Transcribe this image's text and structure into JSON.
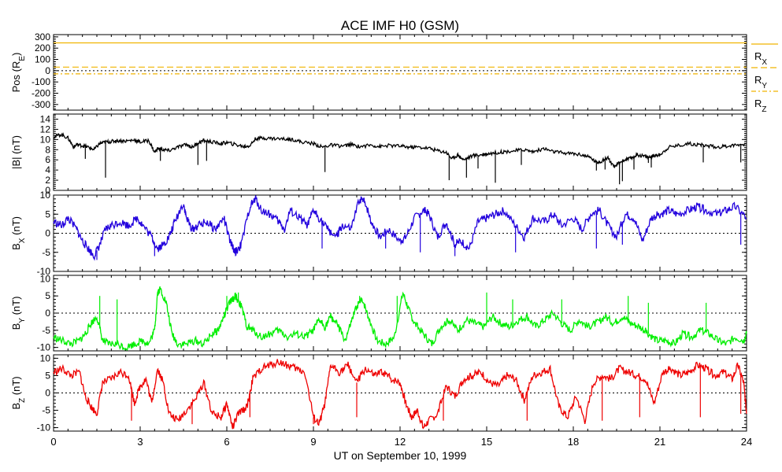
{
  "title": "ACE IMF H0 (GSM)",
  "xlabel": "UT on September 10, 1999",
  "colors": {
    "background": "#ffffff",
    "axes": "#000000",
    "mag": "#000000",
    "bx": "#2200dd",
    "by": "#00ee00",
    "bz": "#ee0000",
    "rx": "#f0b400",
    "ry": "#f0b400",
    "rz": "#f0b400"
  },
  "chart_data": [
    {
      "type": "line",
      "id": "pos",
      "ylabel": "Pos (R_E)",
      "ylabel_parts": [
        "Pos (R",
        "E",
        ")"
      ],
      "ylim": [
        -350,
        320
      ],
      "yticks": [
        300,
        200,
        100,
        0,
        -100,
        -200,
        -300
      ],
      "xlim": [
        0,
        24
      ],
      "zero_line": true,
      "legend": [
        "RX",
        "RY",
        "RZ"
      ],
      "legend_parts": [
        [
          "R",
          "X"
        ],
        [
          "R",
          "Y"
        ],
        [
          "R",
          "Z"
        ]
      ],
      "series": [
        {
          "name": "RX",
          "x": [
            0,
            24
          ],
          "y": [
            247,
            247
          ],
          "dash": ""
        },
        {
          "name": "RY",
          "x": [
            0,
            24
          ],
          "y": [
            32,
            32
          ],
          "dash": "8,4"
        },
        {
          "name": "RZ",
          "x": [
            0,
            24
          ],
          "y": [
            -28,
            -28
          ],
          "dash": "6,3,2,3"
        }
      ]
    },
    {
      "type": "line",
      "id": "mag",
      "ylabel": "|B| (nT)",
      "ylim": [
        0,
        15
      ],
      "yticks": [
        14,
        12,
        10,
        8,
        6,
        4,
        2,
        0
      ],
      "xlim": [
        0,
        24
      ],
      "series": [
        {
          "name": "|B|",
          "x": [
            0,
            0.25,
            0.5,
            0.7,
            0.8,
            1.0,
            1.2,
            1.4,
            1.6,
            1.8,
            2.0,
            2.2,
            2.5,
            2.8,
            3.0,
            3.3,
            3.5,
            3.6,
            3.8,
            4.0,
            4.3,
            4.6,
            4.8,
            5.0,
            5.2,
            5.5,
            5.8,
            6.0,
            6.3,
            6.6,
            6.8,
            7.0,
            7.3,
            7.6,
            8.0,
            8.3,
            8.6,
            9.0,
            9.3,
            9.6,
            10.0,
            10.3,
            10.6,
            11.0,
            11.3,
            11.6,
            12.0,
            12.3,
            12.6,
            13.0,
            13.3,
            13.6,
            13.8,
            14.0,
            14.2,
            14.5,
            14.8,
            15.0,
            15.3,
            15.6,
            16.0,
            16.3,
            16.6,
            17.0,
            17.3,
            17.6,
            18.0,
            18.3,
            18.6,
            18.8,
            19.0,
            19.2,
            19.4,
            19.6,
            19.8,
            20.0,
            20.2,
            20.4,
            20.6,
            20.8,
            21.0,
            21.3,
            21.6,
            22.0,
            22.3,
            22.6,
            23.0,
            23.3,
            23.6,
            24.0
          ],
          "y": [
            10.5,
            11,
            10.3,
            8.5,
            9.0,
            8.8,
            8.5,
            8.0,
            9.2,
            9.5,
            9.6,
            9.8,
            9.7,
            9.9,
            9.5,
            9.8,
            7.5,
            8.2,
            8.0,
            7.8,
            8.5,
            9.0,
            8.5,
            9.3,
            9.8,
            9.5,
            9.2,
            9.4,
            9.0,
            8.6,
            8.8,
            10.2,
            10.3,
            10.2,
            10.1,
            10.0,
            9.5,
            9.2,
            8.5,
            8.9,
            8.7,
            9.0,
            8.6,
            8.9,
            8.6,
            8.8,
            8.7,
            8.5,
            8.5,
            8.3,
            7.8,
            7.5,
            6.2,
            7.0,
            6.0,
            6.8,
            7.0,
            7.2,
            7.4,
            7.6,
            7.8,
            8.0,
            7.6,
            8.2,
            7.6,
            7.4,
            7.2,
            7.0,
            6.4,
            5.5,
            5.8,
            6.5,
            4.5,
            5.5,
            6.0,
            6.3,
            7.0,
            6.8,
            6.5,
            6.8,
            7.0,
            8.5,
            8.8,
            9.2,
            9.0,
            8.8,
            8.5,
            8.7,
            8.9,
            9.2
          ]
        },
        {
          "name": "|B| spikes",
          "x": [
            1.1,
            1.8,
            3.7,
            5.0,
            5.3,
            9.4,
            13.7,
            14.3,
            14.7,
            15.3,
            16.2,
            18.8,
            19.1,
            19.6,
            19.7,
            20.1,
            20.6,
            20.7,
            22.5,
            23.8
          ],
          "y": [
            6.2,
            2.5,
            5.8,
            5.0,
            5.8,
            3.6,
            2.0,
            2.5,
            4.3,
            1.5,
            5.0,
            3.9,
            4.1,
            1.2,
            1.8,
            4.1,
            5.4,
            4.5,
            5.5,
            5.5
          ]
        }
      ]
    },
    {
      "type": "line",
      "id": "bx",
      "ylabel": "BX (nT)",
      "ylabel_parts": [
        "B",
        "X",
        " (nT)"
      ],
      "ylim": [
        -10,
        10
      ],
      "yticks": [
        10,
        5,
        0,
        -5,
        -10
      ],
      "xlim": [
        0,
        24
      ],
      "zero_line": true,
      "series": [
        {
          "name": "BX",
          "x": [
            0,
            0.3,
            0.5,
            0.8,
            1.0,
            1.2,
            1.4,
            1.6,
            1.8,
            2.0,
            2.3,
            2.6,
            2.9,
            3.1,
            3.4,
            3.6,
            3.8,
            4.0,
            4.2,
            4.5,
            4.6,
            4.8,
            5.0,
            5.3,
            5.6,
            5.9,
            6.1,
            6.3,
            6.5,
            6.8,
            7.0,
            7.2,
            7.5,
            7.8,
            8.0,
            8.2,
            8.5,
            8.8,
            9.0,
            9.2,
            9.5,
            9.8,
            10.0,
            10.3,
            10.6,
            10.8,
            11.0,
            11.3,
            11.6,
            12.0,
            12.2,
            12.5,
            12.8,
            13.0,
            13.3,
            13.6,
            13.9,
            14.1,
            14.4,
            14.7,
            15.0,
            15.3,
            15.6,
            16.0,
            16.3,
            16.6,
            17.0,
            17.3,
            17.6,
            18.0,
            18.3,
            18.6,
            18.9,
            19.2,
            19.5,
            19.8,
            20.1,
            20.4,
            20.7,
            21.0,
            21.3,
            21.6,
            22.0,
            22.3,
            22.6,
            23.0,
            23.3,
            23.6,
            24.0
          ],
          "y": [
            3,
            2,
            4,
            1,
            -2,
            -4,
            -6,
            -3,
            1,
            2,
            3,
            2,
            4,
            2,
            -1,
            -4,
            -3,
            -1,
            3,
            8,
            4,
            1,
            2,
            3,
            1,
            4,
            -2,
            -5,
            -3,
            7,
            9,
            6,
            5,
            3,
            1,
            6,
            4,
            2,
            6,
            4,
            1,
            -1,
            2,
            1,
            9,
            8,
            3,
            -1,
            1,
            -2,
            -1,
            4,
            6,
            5,
            -1,
            3,
            -3,
            -2,
            -4,
            3,
            4,
            5,
            6,
            2,
            -1,
            4,
            3,
            5,
            2,
            4,
            1,
            5,
            6,
            2,
            -1,
            5,
            4,
            -2,
            4,
            5,
            6,
            5,
            6,
            7,
            6,
            5,
            6,
            7,
            4
          ]
        },
        {
          "name": "BX spikes",
          "x": [
            1.5,
            3.5,
            6.3,
            9.3,
            11.5,
            12.7,
            13.9,
            14.3,
            16.0,
            18.8,
            19.7,
            23.8
          ],
          "y": [
            -7,
            -6,
            -6,
            -4,
            -4,
            -5,
            -6,
            -4,
            -5,
            -4,
            -3,
            -3
          ]
        }
      ]
    },
    {
      "type": "line",
      "id": "by",
      "ylabel": "BY (nT)",
      "ylabel_parts": [
        "B",
        "Y",
        " (nT)"
      ],
      "ylim": [
        -11,
        11
      ],
      "yticks": [
        10,
        5,
        0,
        -5,
        -10
      ],
      "xlim": [
        0,
        24
      ],
      "zero_line": true,
      "series": [
        {
          "name": "BY",
          "x": [
            0,
            0.3,
            0.6,
            0.9,
            1.1,
            1.3,
            1.5,
            1.7,
            1.9,
            2.2,
            2.5,
            2.8,
            3.1,
            3.3,
            3.5,
            3.6,
            3.7,
            3.9,
            4.1,
            4.3,
            4.6,
            4.9,
            5.2,
            5.5,
            5.7,
            5.9,
            6.1,
            6.3,
            6.5,
            6.7,
            6.9,
            7.2,
            7.5,
            7.8,
            8.1,
            8.4,
            8.7,
            9.0,
            9.2,
            9.4,
            9.6,
            9.8,
            10.1,
            10.3,
            10.5,
            10.7,
            10.9,
            11.2,
            11.5,
            11.8,
            12.1,
            12.3,
            12.5,
            12.8,
            13.1,
            13.4,
            13.7,
            14.0,
            14.3,
            14.6,
            14.9,
            15.2,
            15.5,
            15.8,
            16.1,
            16.4,
            16.7,
            17.0,
            17.3,
            17.6,
            17.9,
            18.2,
            18.5,
            18.8,
            19.1,
            19.4,
            19.7,
            20.0,
            20.3,
            20.6,
            20.9,
            21.2,
            21.5,
            21.8,
            22.1,
            22.4,
            22.7,
            23.0,
            23.3,
            23.6,
            23.9,
            24.0
          ],
          "y": [
            -7,
            -8,
            -9,
            -8,
            -6,
            -3,
            -1,
            -8,
            -9,
            -9,
            -10,
            -9,
            -8,
            -9,
            -5,
            6,
            7,
            3,
            -6,
            -9,
            -9,
            -8,
            -9,
            -6,
            -5,
            -1,
            3,
            5,
            2,
            -4,
            -5,
            -7,
            -6,
            -5,
            -7,
            -6,
            -7,
            -5,
            -2,
            -4,
            -1,
            -3,
            -8,
            -3,
            2,
            4,
            -1,
            -8,
            -9,
            -7,
            6,
            1,
            -3,
            -6,
            -9,
            -4,
            -2,
            -5,
            -2,
            -3,
            -4,
            -1,
            -3,
            -4,
            -2,
            -1,
            -4,
            -2,
            0,
            -3,
            -5,
            -2,
            -4,
            -3,
            -1,
            -3,
            -1,
            -3,
            -4,
            -6,
            -8,
            -8,
            -9,
            -6,
            -7,
            -5,
            -6,
            -8,
            -9,
            -7,
            -8,
            -6
          ]
        },
        {
          "name": "BY spikes",
          "x": [
            1.6,
            2.2,
            6.0,
            6.4,
            10.6,
            11.9,
            15.0,
            15.9,
            17.6,
            19.9,
            20.6,
            22.6
          ],
          "y": [
            5,
            4,
            5,
            6,
            5,
            5,
            6,
            4,
            4,
            5,
            3,
            3
          ]
        }
      ]
    },
    {
      "type": "line",
      "id": "bz",
      "ylabel": "BZ (nT)",
      "ylabel_parts": [
        "B",
        "Z",
        " (nT)"
      ],
      "ylim": [
        -11,
        11
      ],
      "yticks": [
        10,
        5,
        0,
        -5,
        -10
      ],
      "xlim": [
        0,
        24
      ],
      "zero_line": true,
      "series": [
        {
          "name": "BZ",
          "x": [
            0,
            0.3,
            0.6,
            0.9,
            1.1,
            1.3,
            1.5,
            1.7,
            2.0,
            2.3,
            2.6,
            2.8,
            3.0,
            3.2,
            3.4,
            3.6,
            3.8,
            4.0,
            4.3,
            4.6,
            4.9,
            5.2,
            5.5,
            5.8,
            6.0,
            6.2,
            6.4,
            6.7,
            6.9,
            7.2,
            7.5,
            7.8,
            8.1,
            8.4,
            8.7,
            9.0,
            9.2,
            9.4,
            9.6,
            9.9,
            10.2,
            10.5,
            10.8,
            11.1,
            11.4,
            11.7,
            12.0,
            12.2,
            12.4,
            12.6,
            12.8,
            13.0,
            13.3,
            13.6,
            13.9,
            14.2,
            14.5,
            14.8,
            15.1,
            15.4,
            15.7,
            16.0,
            16.3,
            16.6,
            16.9,
            17.2,
            17.5,
            17.8,
            18.1,
            18.4,
            18.7,
            19.0,
            19.3,
            19.6,
            19.9,
            20.2,
            20.5,
            20.8,
            21.1,
            21.4,
            21.7,
            22.0,
            22.3,
            22.6,
            22.9,
            23.2,
            23.5,
            23.7,
            23.9,
            24.0
          ],
          "y": [
            6,
            7,
            5,
            6,
            -1,
            -4,
            -6,
            3,
            4,
            6,
            5,
            -3,
            2,
            4,
            -3,
            7,
            3,
            -6,
            -8,
            -5,
            -2,
            3,
            -6,
            -7,
            -3,
            -10,
            -6,
            -4,
            4,
            7,
            8,
            9,
            8,
            7,
            6,
            -7,
            -9,
            -3,
            8,
            6,
            8,
            3,
            7,
            5,
            6,
            4,
            3,
            -3,
            -7,
            -5,
            -10,
            -8,
            -6,
            2,
            -1,
            4,
            5,
            6,
            3,
            2,
            5,
            4,
            -2,
            5,
            6,
            7,
            -4,
            -7,
            -1,
            -8,
            3,
            5,
            4,
            7,
            6,
            5,
            4,
            -3,
            6,
            7,
            5,
            6,
            8,
            7,
            5,
            6,
            4,
            8,
            3,
            -6
          ]
        },
        {
          "name": "BZ spikes",
          "x": [
            2.7,
            4.8,
            6.8,
            9.0,
            10.5,
            12.9,
            13.5,
            16.4,
            19.0,
            20.3,
            22.4,
            23.8
          ],
          "y": [
            -8,
            -9,
            -7,
            -9,
            -7,
            -9,
            -8,
            -8,
            -8,
            -7,
            -7,
            -6
          ]
        }
      ]
    }
  ],
  "x_axis": {
    "ticks": [
      0,
      3,
      6,
      9,
      12,
      15,
      18,
      21,
      24
    ],
    "tick_labels": [
      "0",
      "3",
      "6",
      "9",
      "12",
      "15",
      "18",
      "21",
      "24"
    ]
  }
}
